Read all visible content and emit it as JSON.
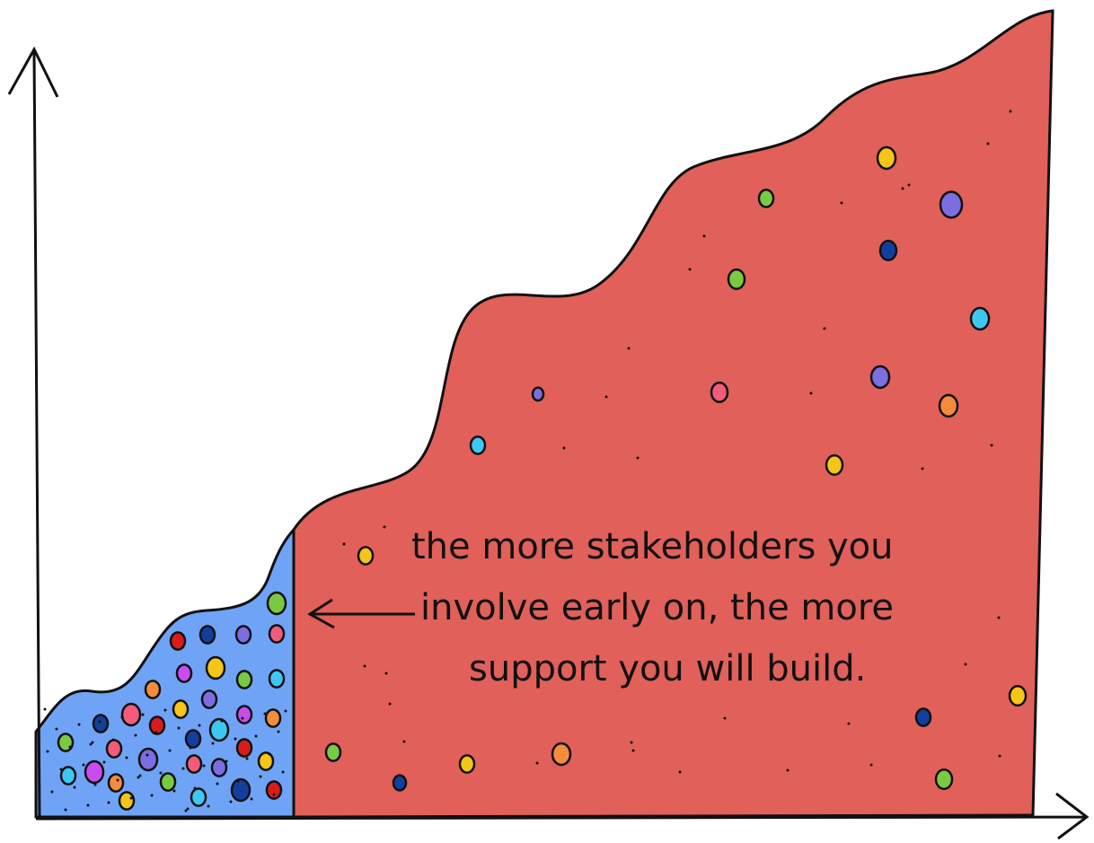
{
  "annotation": {
    "lines": [
      "the more stakeholders you",
      "involve early on, the more",
      "support you will build."
    ]
  }
}
